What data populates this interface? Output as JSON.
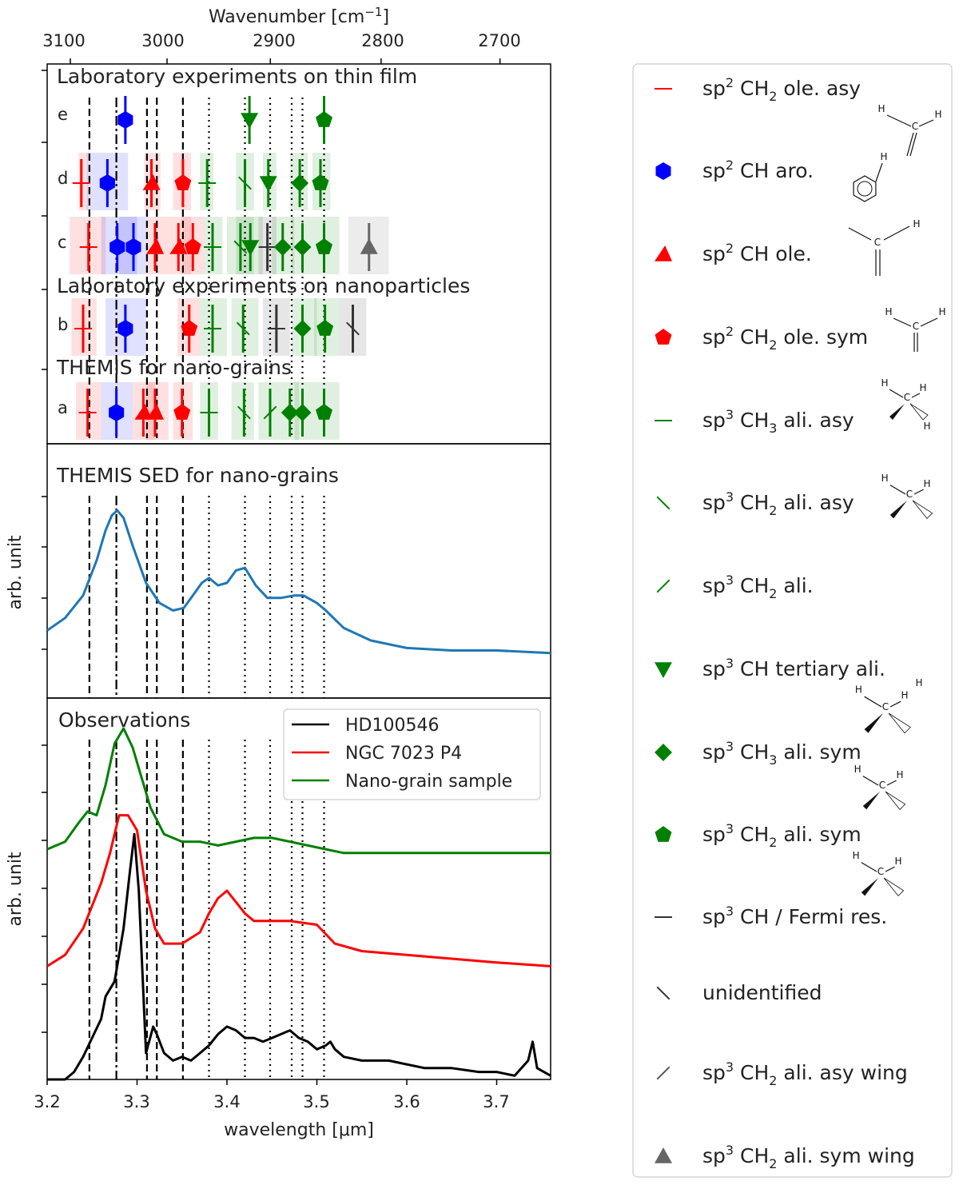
{
  "chart_data": {
    "type": "line",
    "x_axis": {
      "label": "wavelength [μm]",
      "range": [
        3.2,
        3.76
      ],
      "ticks": [
        3.2,
        3.3,
        3.4,
        3.5,
        3.6,
        3.7
      ],
      "tick_labels": [
        "3.2",
        "3.3",
        "3.4",
        "3.5",
        "3.6",
        "3.7"
      ]
    },
    "top_axis": {
      "label_text": "Wavenumber [cm",
      "label_sup": "−1",
      "label_close": "]",
      "ticks_cm": [
        3100,
        3000,
        2900,
        2800,
        2700
      ],
      "tick_labels": [
        "3100",
        "3000",
        "2900",
        "2800",
        "2700"
      ]
    },
    "reference_lines": {
      "dashed": [
        3.247,
        3.311,
        3.322,
        3.351
      ],
      "dashdot": [
        3.277
      ],
      "dotted": [
        3.38,
        3.42,
        3.448,
        3.472,
        3.484,
        3.508
      ]
    },
    "panels": [
      {
        "id": "laboratory",
        "titles": [
          {
            "text": "Laboratory experiments on thin film",
            "row_anchor": "top"
          },
          {
            "text": "Laboratory experiments on nanoparticles",
            "row_anchor": "between-c-b"
          },
          {
            "text": "THEMIS for nano-grains",
            "row_anchor": "between-b-a"
          }
        ],
        "rows": [
          {
            "label": "e",
            "markers": [
              {
                "wl": 3.287,
                "type": "sp2_CH_aro"
              },
              {
                "wl": 3.425,
                "type": "sp3_CH_tertiary"
              },
              {
                "wl": 3.508,
                "type": "sp3_CH2_sym"
              }
            ]
          },
          {
            "label": "d",
            "markers": [
              {
                "wl": 3.238,
                "type": "sp2_CH2_asy",
                "band": [
                  3.235,
                  3.245
                ]
              },
              {
                "wl": 3.267,
                "type": "sp2_CH_aro",
                "band": [
                  3.244,
                  3.29
                ]
              },
              {
                "wl": 3.316,
                "type": "sp2_CH_ole",
                "band": [
                  3.308,
                  3.326
                ]
              },
              {
                "wl": 3.351,
                "type": "sp2_CH2_sym",
                "band": [
                  3.34,
                  3.36
                ]
              },
              {
                "wl": 3.378,
                "type": "sp3_CH3_asy",
                "band": [
                  3.37,
                  3.385
                ]
              },
              {
                "wl": 3.42,
                "type": "sp3_CH2_asy",
                "band": [
                  3.41,
                  3.43
                ]
              },
              {
                "wl": 3.446,
                "type": "sp3_CH_tertiary",
                "band": [
                  3.44,
                  3.455
                ]
              },
              {
                "wl": 3.481,
                "type": "sp3_CH3_sym",
                "band": [
                  3.47,
                  3.49
                ]
              },
              {
                "wl": 3.504,
                "type": "sp3_CH2_sym",
                "band": [
                  3.495,
                  3.515
                ]
              }
            ]
          },
          {
            "label": "c",
            "markers": [
              {
                "wl": 3.246,
                "type": "sp2_CH2_asy",
                "band": [
                  3.225,
                  3.265
                ]
              },
              {
                "wl": 3.278,
                "type": "sp2_CH_aro",
                "band": [
                  3.26,
                  3.3
                ]
              },
              {
                "wl": 3.296,
                "type": "sp2_CH_aro",
                "band": [
                  3.28,
                  3.31
                ]
              },
              {
                "wl": 3.32,
                "type": "sp2_CH_ole",
                "band": [
                  3.31,
                  3.335
                ]
              },
              {
                "wl": 3.346,
                "type": "sp2_CH_ole",
                "band": [
                  3.335,
                  3.36
                ]
              },
              {
                "wl": 3.362,
                "type": "sp2_CH2_sym",
                "band": [
                  3.35,
                  3.375
                ]
              },
              {
                "wl": 3.384,
                "type": "sp3_CH3_asy",
                "band": [
                  3.375,
                  3.395
                ]
              },
              {
                "wl": 3.415,
                "type": "sp3_CH2_asy",
                "band": [
                  3.4,
                  3.43
                ]
              },
              {
                "wl": 3.426,
                "type": "sp3_CH_tertiary",
                "band": [
                  3.41,
                  3.44
                ]
              },
              {
                "wl": 3.445,
                "type": "sp3_CH_Fermi",
                "band": [
                  3.435,
                  3.455
                ]
              },
              {
                "wl": 3.462,
                "type": "sp3_CH3_sym",
                "band": [
                  3.45,
                  3.475
                ]
              },
              {
                "wl": 3.484,
                "type": "sp3_CH3_sym",
                "band": [
                  3.472,
                  3.495
                ]
              },
              {
                "wl": 3.508,
                "type": "sp3_CH2_sym",
                "band": [
                  3.495,
                  3.525
                ]
              },
              {
                "wl": 3.558,
                "type": "sp3_CH2_sym_wing",
                "band": [
                  3.535,
                  3.58
                ]
              }
            ]
          },
          {
            "label": "b",
            "markers": [
              {
                "wl": 3.24,
                "type": "sp2_CH2_asy",
                "band": [
                  3.227,
                  3.255
                ]
              },
              {
                "wl": 3.287,
                "type": "sp2_CH_aro",
                "band": [
                  3.265,
                  3.31
                ]
              },
              {
                "wl": 3.358,
                "type": "sp2_CH2_sym",
                "band": [
                  3.345,
                  3.37
                ]
              },
              {
                "wl": 3.384,
                "type": "sp3_CH3_asy",
                "band": [
                  3.37,
                  3.4
                ]
              },
              {
                "wl": 3.418,
                "type": "sp3_CH2_asy",
                "band": [
                  3.405,
                  3.435
                ]
              },
              {
                "wl": 3.455,
                "type": "sp3_CH_Fermi",
                "band": [
                  3.44,
                  3.47
                ]
              },
              {
                "wl": 3.484,
                "type": "sp3_CH3_sym",
                "band": [
                  3.472,
                  3.5
                ]
              },
              {
                "wl": 3.509,
                "type": "sp3_CH2_sym",
                "band": [
                  3.497,
                  3.525
                ]
              },
              {
                "wl": 3.54,
                "type": "unidentified",
                "band": [
                  3.525,
                  3.555
                ]
              }
            ]
          },
          {
            "label": "a",
            "markers": [
              {
                "wl": 3.245,
                "type": "sp2_CH2_asy",
                "band": [
                  3.232,
                  3.26
                ]
              },
              {
                "wl": 3.277,
                "type": "sp2_CH_aro",
                "band": [
                  3.26,
                  3.295
                ]
              },
              {
                "wl": 3.307,
                "type": "sp2_CH_ole",
                "band": [
                  3.295,
                  3.32
                ]
              },
              {
                "wl": 3.32,
                "type": "sp2_CH_ole",
                "band": [
                  3.31,
                  3.335
                ]
              },
              {
                "wl": 3.35,
                "type": "sp2_CH2_sym",
                "band": [
                  3.34,
                  3.362
                ]
              },
              {
                "wl": 3.38,
                "type": "sp3_CH3_asy",
                "band": [
                  3.37,
                  3.39
                ]
              },
              {
                "wl": 3.419,
                "type": "sp3_CH2_asy",
                "band": [
                  3.405,
                  3.43
                ]
              },
              {
                "wl": 3.448,
                "type": "sp3_CH2_ali",
                "band": [
                  3.435,
                  3.46
                ]
              },
              {
                "wl": 3.47,
                "type": "sp3_CH3_sym",
                "band": [
                  3.46,
                  3.48
                ]
              },
              {
                "wl": 3.484,
                "type": "sp3_CH3_sym",
                "band": [
                  3.475,
                  3.495
                ]
              },
              {
                "wl": 3.508,
                "type": "sp3_CH2_sym",
                "band": [
                  3.495,
                  3.525
                ]
              }
            ]
          }
        ]
      },
      {
        "id": "sed",
        "title": "THEMIS SED for nano-grains",
        "ylabel": "arb. unit",
        "ylim": [
          0,
          1
        ],
        "series": [
          {
            "name": "THEMIS SED",
            "color": "#1f77b4",
            "x": [
              3.2,
              3.22,
              3.24,
              3.255,
              3.265,
              3.272,
              3.278,
              3.285,
              3.295,
              3.31,
              3.325,
              3.34,
              3.352,
              3.362,
              3.372,
              3.38,
              3.39,
              3.4,
              3.41,
              3.42,
              3.432,
              3.445,
              3.46,
              3.475,
              3.485,
              3.5,
              3.51,
              3.53,
              3.56,
              3.6,
              3.65,
              3.7,
              3.76
            ],
            "y": [
              0.27,
              0.32,
              0.41,
              0.55,
              0.67,
              0.73,
              0.75,
              0.72,
              0.61,
              0.46,
              0.38,
              0.35,
              0.36,
              0.41,
              0.46,
              0.48,
              0.45,
              0.46,
              0.51,
              0.52,
              0.45,
              0.4,
              0.4,
              0.41,
              0.41,
              0.38,
              0.35,
              0.28,
              0.23,
              0.2,
              0.19,
              0.19,
              0.18
            ]
          }
        ]
      },
      {
        "id": "observations",
        "title": "Observations",
        "ylabel": "arb. unit",
        "ylim": [
          0,
          1
        ],
        "legend_position": "top-right",
        "series": [
          {
            "name": "HD100546",
            "color": "#000000",
            "x": [
              3.2,
              3.22,
              3.23,
              3.24,
              3.25,
              3.26,
              3.265,
              3.275,
              3.285,
              3.292,
              3.297,
              3.302,
              3.31,
              3.318,
              3.322,
              3.33,
              3.34,
              3.35,
              3.36,
              3.37,
              3.38,
              3.39,
              3.4,
              3.41,
              3.42,
              3.43,
              3.44,
              3.45,
              3.46,
              3.47,
              3.48,
              3.49,
              3.5,
              3.51,
              3.515,
              3.52,
              3.53,
              3.55,
              3.58,
              3.6,
              3.62,
              3.65,
              3.68,
              3.7,
              3.72,
              3.735,
              3.74,
              3.745,
              3.76
            ],
            "y": [
              0.0,
              0.0,
              0.02,
              0.06,
              0.11,
              0.16,
              0.22,
              0.26,
              0.4,
              0.55,
              0.65,
              0.5,
              0.07,
              0.14,
              0.12,
              0.07,
              0.05,
              0.06,
              0.05,
              0.07,
              0.09,
              0.12,
              0.14,
              0.13,
              0.11,
              0.11,
              0.1,
              0.11,
              0.12,
              0.13,
              0.11,
              0.1,
              0.08,
              0.09,
              0.1,
              0.08,
              0.06,
              0.05,
              0.05,
              0.04,
              0.03,
              0.03,
              0.02,
              0.02,
              0.01,
              0.05,
              0.1,
              0.03,
              0.01
            ]
          },
          {
            "name": "NGC 7023 P4",
            "color": "#ff0000",
            "x": [
              3.2,
              3.22,
              3.24,
              3.26,
              3.27,
              3.28,
              3.29,
              3.3,
              3.31,
              3.32,
              3.33,
              3.35,
              3.37,
              3.38,
              3.39,
              3.4,
              3.41,
              3.42,
              3.43,
              3.45,
              3.47,
              3.5,
              3.52,
              3.55,
              3.6,
              3.65,
              3.7,
              3.76
            ],
            "y": [
              0.3,
              0.33,
              0.4,
              0.52,
              0.6,
              0.7,
              0.7,
              0.66,
              0.5,
              0.4,
              0.36,
              0.36,
              0.39,
              0.44,
              0.48,
              0.5,
              0.47,
              0.44,
              0.42,
              0.42,
              0.42,
              0.41,
              0.36,
              0.34,
              0.33,
              0.32,
              0.31,
              0.3
            ]
          },
          {
            "name": "Nano-grain sample",
            "color": "#008000",
            "x": [
              3.2,
              3.22,
              3.235,
              3.245,
              3.255,
              3.265,
              3.275,
              3.285,
              3.295,
              3.305,
              3.315,
              3.33,
              3.35,
              3.37,
              3.39,
              3.41,
              3.43,
              3.45,
              3.47,
              3.49,
              3.51,
              3.53,
              3.56,
              3.6,
              3.65,
              3.7,
              3.76
            ],
            "y": [
              0.61,
              0.63,
              0.68,
              0.71,
              0.7,
              0.78,
              0.89,
              0.93,
              0.88,
              0.8,
              0.72,
              0.65,
              0.63,
              0.63,
              0.62,
              0.63,
              0.64,
              0.64,
              0.63,
              0.62,
              0.61,
              0.6,
              0.6,
              0.6,
              0.6,
              0.6,
              0.6
            ]
          }
        ]
      }
    ]
  },
  "legend": {
    "items": [
      {
        "key": "sp2_CH2_asy",
        "pre": "sp",
        "sup": "2",
        "mid": " CH",
        "sub": "2",
        "post": " ole. asy",
        "color": "#ff0000"
      },
      {
        "key": "sp2_CH_aro",
        "pre": "sp",
        "sup": "2",
        "mid": " CH aro.",
        "sub": "",
        "post": "",
        "color": "#0000ff"
      },
      {
        "key": "sp2_CH_ole",
        "pre": "sp",
        "sup": "2",
        "mid": " CH ole.",
        "sub": "",
        "post": "",
        "color": "#ff0000"
      },
      {
        "key": "sp2_CH2_sym",
        "pre": "sp",
        "sup": "2",
        "mid": " CH",
        "sub": "2",
        "post": " ole. sym",
        "color": "#ff0000"
      },
      {
        "key": "sp3_CH3_asy",
        "pre": "sp",
        "sup": "3",
        "mid": " CH",
        "sub": "3",
        "post": " ali. asy",
        "color": "#008000"
      },
      {
        "key": "sp3_CH2_asy",
        "pre": "sp",
        "sup": "3",
        "mid": " CH",
        "sub": "2",
        "post": " ali. asy",
        "color": "#008000"
      },
      {
        "key": "sp3_CH2_ali",
        "pre": "sp",
        "sup": "3",
        "mid": " CH",
        "sub": "2",
        "post": " ali.",
        "color": "#008000"
      },
      {
        "key": "sp3_CH_tertiary",
        "pre": "sp",
        "sup": "3",
        "mid": " CH tertiary ali.",
        "sub": "",
        "post": "",
        "color": "#008000"
      },
      {
        "key": "sp3_CH3_sym",
        "pre": "sp",
        "sup": "3",
        "mid": " CH",
        "sub": "3",
        "post": " ali. sym",
        "color": "#008000"
      },
      {
        "key": "sp3_CH2_sym",
        "pre": "sp",
        "sup": "3",
        "mid": " CH",
        "sub": "2",
        "post": " ali. sym",
        "color": "#008000"
      },
      {
        "key": "sp3_CH_Fermi",
        "pre": "sp",
        "sup": "3",
        "mid": " CH / Fermi res.",
        "sub": "",
        "post": "",
        "color": "#333333"
      },
      {
        "key": "unidentified",
        "pre": "unidentified",
        "sup": "",
        "mid": "",
        "sub": "",
        "post": "",
        "color": "#333333"
      },
      {
        "key": "sp3_CH2_asy_wing",
        "pre": "sp",
        "sup": "3",
        "mid": " CH",
        "sub": "2",
        "post": " ali. asy  wing",
        "color": "#555555"
      },
      {
        "key": "sp3_CH2_sym_wing",
        "pre": "sp",
        "sup": "3",
        "mid": " CH",
        "sub": "2",
        "post": " ali. sym  wing",
        "color": "#666666"
      }
    ],
    "molecule_labels": {
      "c": "C",
      "h": "H"
    }
  },
  "colors": {
    "red": "#ff0000",
    "blue": "#0000ff",
    "green": "#008000",
    "gray": "#666666",
    "sed": "#1f77b4"
  }
}
